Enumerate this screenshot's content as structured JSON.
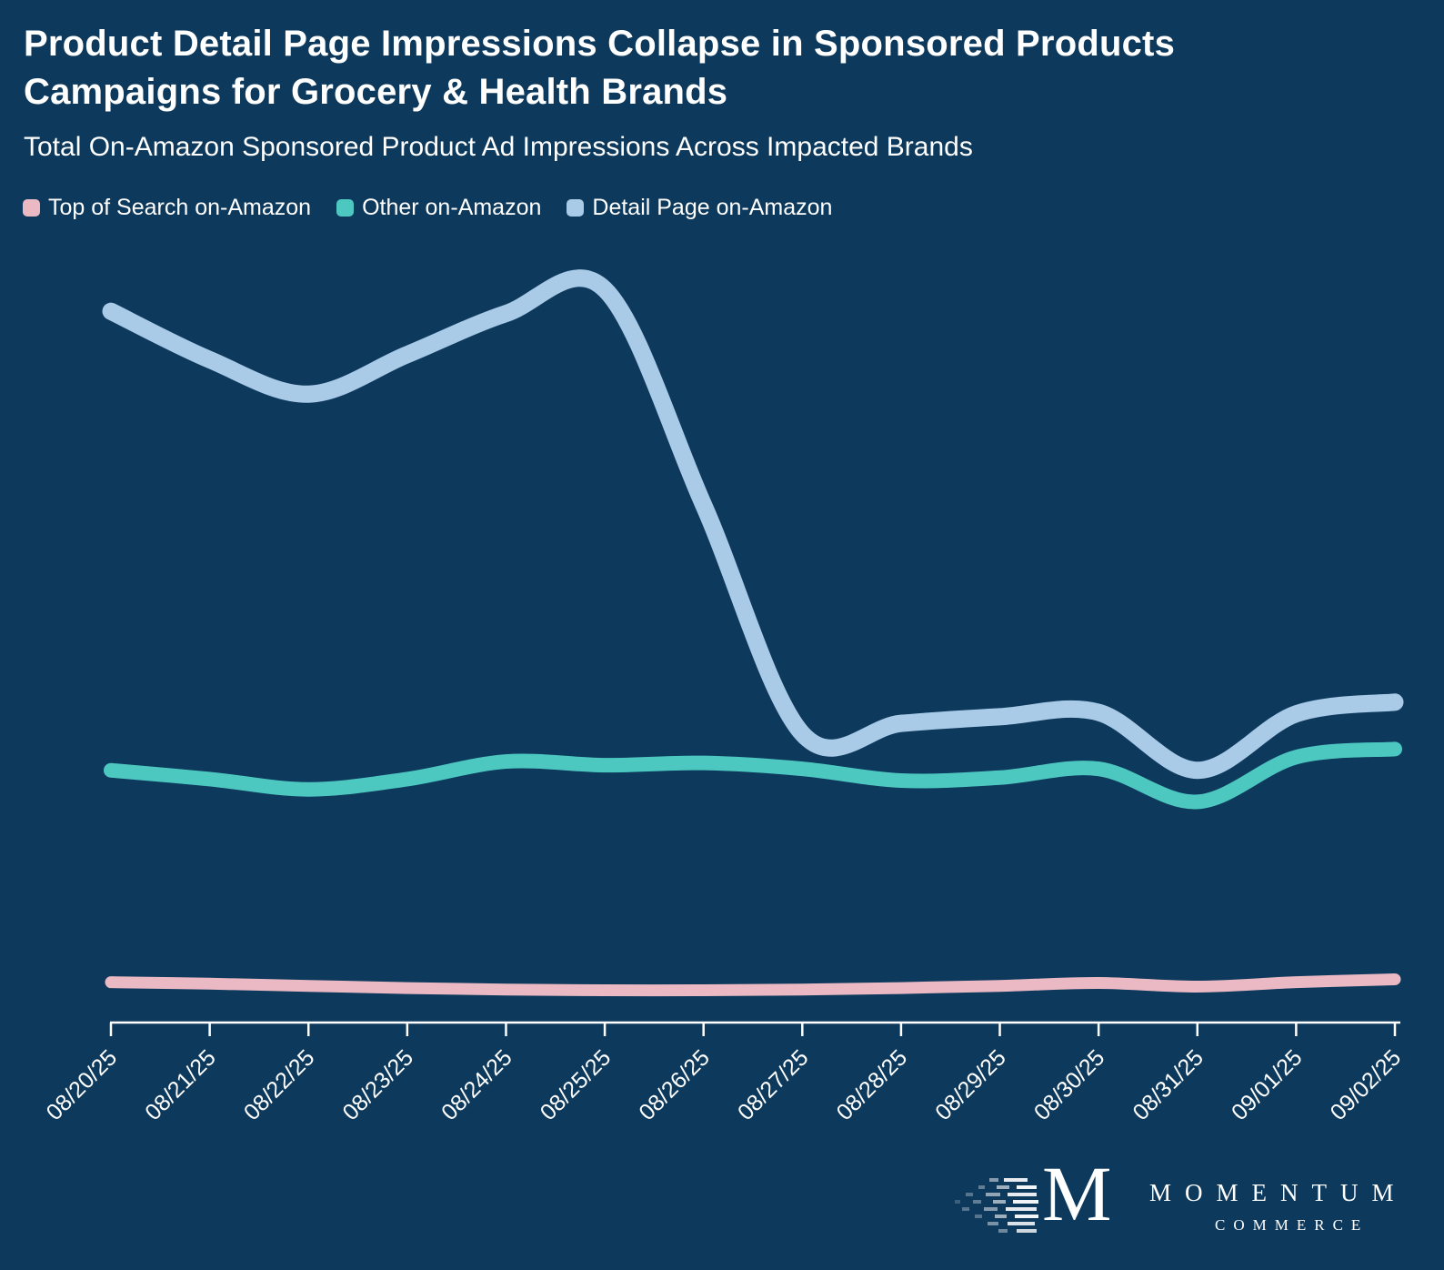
{
  "header": {
    "title_line1": "Product Detail Page Impressions Collapse in Sponsored Products",
    "title_line2": "Campaigns for Grocery & Health Brands",
    "subtitle": "Total On-Amazon Sponsored Product Ad Impressions Across Impacted Brands"
  },
  "colors": {
    "background": "#0d395c",
    "text": "#ffffff",
    "axis": "#ffffff",
    "top_of_search": "#eab9c3",
    "other": "#4cc8c1",
    "detail_page": "#a9cbe8"
  },
  "logo": {
    "monogram": "M",
    "line1": "MOMENTUM",
    "line2": "COMMERCE"
  },
  "chart_data": {
    "type": "line",
    "title": "Product Detail Page Impressions Collapse in Sponsored Products Campaigns for Grocery & Health Brands",
    "subtitle": "Total On-Amazon Sponsored Product Ad Impressions Across Impacted Brands",
    "categories": [
      "08/20/25",
      "08/21/25",
      "08/22/25",
      "08/23/25",
      "08/24/25",
      "08/25/25",
      "08/26/25",
      "08/27/25",
      "08/28/25",
      "08/29/25",
      "08/30/25",
      "08/31/25",
      "09/01/25",
      "09/02/25"
    ],
    "series": [
      {
        "name": "Top of Search on-Amazon",
        "color": "#eab9c3",
        "stroke_width": 13,
        "values": [
          5.5,
          5.3,
          5.0,
          4.7,
          4.5,
          4.4,
          4.4,
          4.5,
          4.7,
          5.0,
          5.4,
          4.9,
          5.5,
          5.9
        ]
      },
      {
        "name": "Other on-Amazon",
        "color": "#4cc8c1",
        "stroke_width": 16,
        "values": [
          34.4,
          33.2,
          31.8,
          33.2,
          35.6,
          35.1,
          35.4,
          34.6,
          33.0,
          33.4,
          34.6,
          30.1,
          36.2,
          37.3
        ]
      },
      {
        "name": "Detail Page on-Amazon",
        "color": "#a9cbe8",
        "stroke_width": 19,
        "values": [
          97.0,
          90.4,
          85.7,
          91.1,
          96.7,
          100.0,
          70.6,
          39.4,
          40.8,
          41.7,
          42.3,
          34.4,
          42.1,
          43.7
        ]
      }
    ],
    "ylim": [
      0,
      100
    ],
    "y_axis_visible": false,
    "grid": false,
    "legend_position": "top-left",
    "x_axis": {
      "label_rotation": -45
    },
    "units": "relative impressions index (no y-axis labels shown)"
  }
}
